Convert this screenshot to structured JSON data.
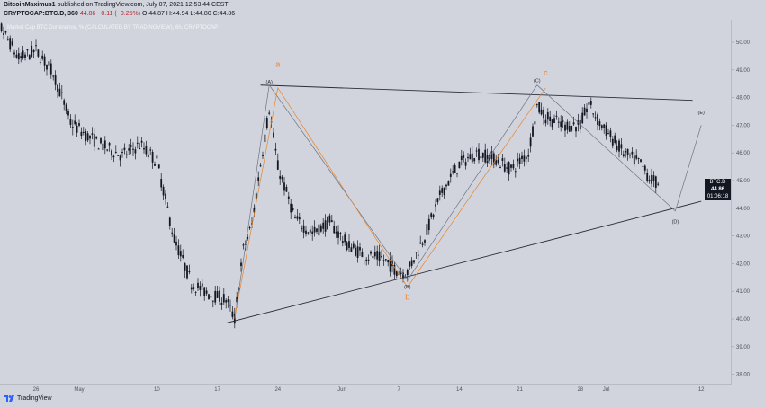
{
  "header": {
    "author": "BitcoinMaximus1",
    "published": "published on TradingView.com, July 07, 2021 12:53:44 CEST",
    "symbol": "CRYPTOCAP:BTC.D, 360",
    "last": "44.86",
    "change": "−0.11 (−0.25%)",
    "ohlc_o": "O:44.87",
    "ohlc_h": "H:44.94",
    "ohlc_l": "L:44.80",
    "ohlc_c": "C:44.86"
  },
  "subtitle": "Market Cap BTC Dominance, % (CALCULATED BY TRADINGVIEW), 6h, CRYPTOCAP",
  "price_tag": {
    "symbol": "BTC.D",
    "value": "44.86",
    "countdown": "01:06:18"
  },
  "footer": {
    "brand": "TradingView"
  },
  "colors": {
    "background": "#d1d4dc",
    "candle": "#131722",
    "wave_gray": "#6e7483",
    "wave_orange": "#e8862e",
    "trendline": "#2a2e39"
  },
  "chart_data": {
    "type": "candlestick",
    "title": "Market Cap BTC Dominance, %",
    "y_axis": {
      "ticks": [
        "38.00",
        "39.00",
        "40.00",
        "41.00",
        "42.00",
        "43.00",
        "44.00",
        "45.00",
        "46.00",
        "47.00",
        "48.00",
        "49.00",
        "50.00"
      ],
      "range": [
        37.8,
        51.0
      ],
      "position": "right"
    },
    "x_axis": {
      "ticks": [
        "26",
        "May",
        "10",
        "17",
        "24",
        "Jun",
        "7",
        "14",
        "21",
        "28",
        "Jul",
        "12",
        "19"
      ]
    },
    "series_close": [
      {
        "date": "2021-04-20",
        "value": 50.7
      },
      {
        "date": "2021-04-22",
        "value": 50.5
      },
      {
        "date": "2021-04-24",
        "value": 49.4
      },
      {
        "date": "2021-04-26",
        "value": 49.7
      },
      {
        "date": "2021-04-28",
        "value": 48.9
      },
      {
        "date": "2021-04-30",
        "value": 47.1
      },
      {
        "date": "2021-05-02",
        "value": 46.6
      },
      {
        "date": "2021-05-04",
        "value": 46.2
      },
      {
        "date": "2021-05-06",
        "value": 45.9
      },
      {
        "date": "2021-05-08",
        "value": 46.3
      },
      {
        "date": "2021-05-10",
        "value": 45.7
      },
      {
        "date": "2021-05-12",
        "value": 42.9
      },
      {
        "date": "2021-05-14",
        "value": 41.3
      },
      {
        "date": "2021-05-16",
        "value": 40.9
      },
      {
        "date": "2021-05-18",
        "value": 40.7
      },
      {
        "date": "2021-05-19",
        "value": 40.0
      },
      {
        "date": "2021-05-20",
        "value": 42.5
      },
      {
        "date": "2021-05-21",
        "value": 43.4
      },
      {
        "date": "2021-05-22",
        "value": 45.6
      },
      {
        "date": "2021-05-23",
        "value": 47.6
      },
      {
        "date": "2021-05-24",
        "value": 45.5
      },
      {
        "date": "2021-05-26",
        "value": 43.6
      },
      {
        "date": "2021-05-28",
        "value": 43.1
      },
      {
        "date": "2021-05-30",
        "value": 43.5
      },
      {
        "date": "2021-06-01",
        "value": 42.7
      },
      {
        "date": "2021-06-03",
        "value": 42.3
      },
      {
        "date": "2021-06-05",
        "value": 42.2
      },
      {
        "date": "2021-06-07",
        "value": 41.7
      },
      {
        "date": "2021-06-08",
        "value": 41.7
      },
      {
        "date": "2021-06-10",
        "value": 43.0
      },
      {
        "date": "2021-06-12",
        "value": 44.6
      },
      {
        "date": "2021-06-14",
        "value": 45.6
      },
      {
        "date": "2021-06-16",
        "value": 46.0
      },
      {
        "date": "2021-06-18",
        "value": 45.8
      },
      {
        "date": "2021-06-20",
        "value": 45.4
      },
      {
        "date": "2021-06-22",
        "value": 46.0
      },
      {
        "date": "2021-06-23",
        "value": 47.7
      },
      {
        "date": "2021-06-24",
        "value": 47.3
      },
      {
        "date": "2021-06-26",
        "value": 47.0
      },
      {
        "date": "2021-06-28",
        "value": 47.0
      },
      {
        "date": "2021-06-29",
        "value": 47.8
      },
      {
        "date": "2021-06-30",
        "value": 47.2
      },
      {
        "date": "2021-07-01",
        "value": 46.8
      },
      {
        "date": "2021-07-03",
        "value": 46.0
      },
      {
        "date": "2021-07-04",
        "value": 45.8
      },
      {
        "date": "2021-07-05",
        "value": 45.6
      },
      {
        "date": "2021-07-06",
        "value": 45.1
      },
      {
        "date": "2021-07-07",
        "value": 44.86
      }
    ],
    "wave_labels": [
      {
        "text": "(A)",
        "date": "2021-05-23",
        "value": 48.5,
        "color": "gray"
      },
      {
        "text": "(B)",
        "date": "2021-06-08",
        "value": 41.1,
        "color": "gray"
      },
      {
        "text": "(C)",
        "date": "2021-06-23",
        "value": 48.55,
        "color": "gray"
      },
      {
        "text": "(D)",
        "date": "2021-07-09",
        "value": 43.45,
        "color": "gray"
      },
      {
        "text": "(E)",
        "date": "2021-07-12",
        "value": 47.4,
        "color": "gray"
      },
      {
        "text": "a",
        "date": "2021-05-24",
        "value": 49.1,
        "color": "orange"
      },
      {
        "text": "b",
        "date": "2021-06-08",
        "value": 40.7,
        "color": "orange"
      },
      {
        "text": "c",
        "date": "2021-06-24",
        "value": 48.8,
        "color": "orange"
      }
    ],
    "trendlines": [
      {
        "name": "upper-trendline",
        "from": {
          "date": "2021-05-22",
          "value": 48.45
        },
        "to": {
          "date": "2021-07-11",
          "value": 47.9
        }
      },
      {
        "name": "lower-trendline",
        "from": {
          "date": "2021-05-18",
          "value": 39.85
        },
        "to": {
          "date": "2021-07-12",
          "value": 44.25
        }
      }
    ],
    "wave_paths": [
      {
        "name": "gray-wave-path",
        "color": "gray",
        "points": [
          [
            "2021-05-19",
            40.0
          ],
          [
            "2021-05-23",
            48.45
          ],
          [
            "2021-06-08",
            41.4
          ],
          [
            "2021-06-23",
            48.45
          ],
          [
            "2021-07-09",
            43.9
          ],
          [
            "2021-07-12",
            47.0
          ]
        ]
      },
      {
        "name": "orange-wave-path",
        "color": "orange",
        "points": [
          [
            "2021-05-19",
            40.05
          ],
          [
            "2021-05-24",
            48.35
          ],
          [
            "2021-06-08",
            41.15
          ],
          [
            "2021-06-24",
            48.35
          ]
        ]
      }
    ]
  }
}
